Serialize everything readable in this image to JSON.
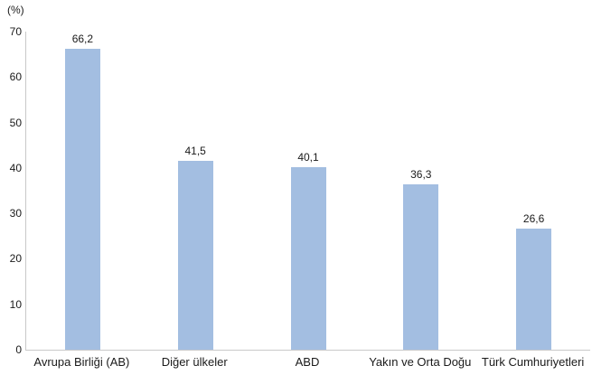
{
  "chart_data": {
    "type": "bar",
    "title": "",
    "unit_label": "(%)",
    "categories": [
      "Avrupa Birliği (AB)",
      "Diğer ülkeler",
      "ABD",
      "Yakın ve Orta Doğu",
      "Türk Cumhuriyetleri"
    ],
    "values": [
      66.2,
      41.5,
      40.1,
      36.3,
      26.6
    ],
    "value_labels": [
      "66,2",
      "41,5",
      "40,1",
      "36,3",
      "26,6"
    ],
    "ylim": [
      0,
      70
    ],
    "yticks": [
      0,
      10,
      20,
      30,
      40,
      50,
      60,
      70
    ],
    "grid": false,
    "legend": "none",
    "bar_color": "#a3bee1",
    "axis_color": "#c9c9c9",
    "text_color": "#1a1a1a"
  }
}
